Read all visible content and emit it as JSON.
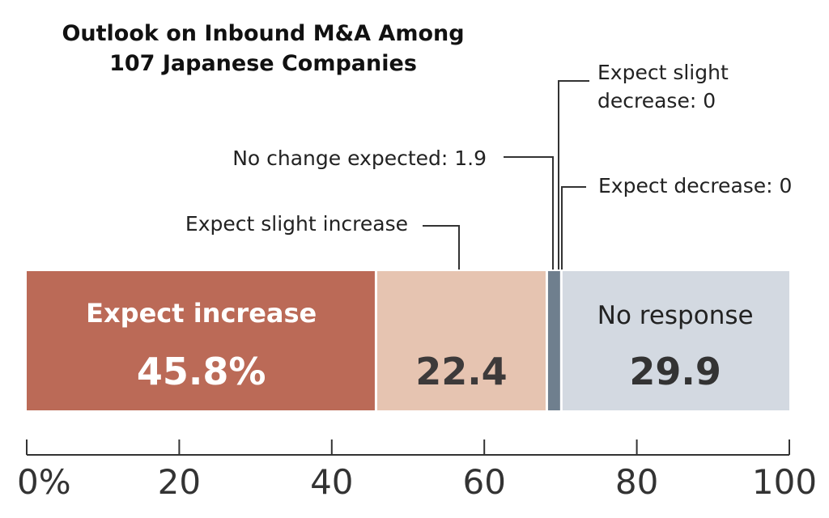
{
  "chart_data": {
    "type": "bar",
    "orientation": "horizontal-stacked",
    "title_lines": [
      "Outlook on Inbound M&A Among",
      "107 Japanese Companies"
    ],
    "unit": "%",
    "xlim": [
      0,
      100
    ],
    "ticks": [
      0,
      20,
      40,
      60,
      80,
      100
    ],
    "tick_labels": [
      "0%",
      "20",
      "40",
      "60",
      "80",
      "100"
    ],
    "grid": false,
    "legend": "none",
    "series": [
      {
        "name": "Expect increase",
        "value": 45.8,
        "value_label": "45.8%",
        "color": "#bb6a57",
        "label_inside": true,
        "text_color": "#ffffff"
      },
      {
        "name": "Expect slight increase",
        "value": 22.4,
        "value_label": "22.4",
        "color": "#e6c4b1",
        "label_inside": false,
        "text_color": "#3d3a3a"
      },
      {
        "name": "No change expected",
        "value": 1.9,
        "value_label": "1.9",
        "color": "#6f7f8e",
        "label_inside": false,
        "text_color": "#222222"
      },
      {
        "name": "Expect slight decrease",
        "value": 0,
        "value_label": "0",
        "color": "#6f7f8e",
        "label_inside": false,
        "text_color": "#222222"
      },
      {
        "name": "Expect decrease",
        "value": 0,
        "value_label": "0",
        "color": "#6f7f8e",
        "label_inside": false,
        "text_color": "#222222"
      },
      {
        "name": "No response",
        "value": 29.9,
        "value_label": "29.9",
        "color": "#d3d9e1",
        "label_inside": true,
        "text_color": "#333333"
      }
    ],
    "callouts": [
      {
        "text": "Expect slight increase"
      },
      {
        "text": "No change expected: 1.9"
      },
      {
        "lines": [
          "Expect slight",
          "decrease: 0"
        ]
      },
      {
        "text": "Expect decrease: 0"
      }
    ]
  }
}
